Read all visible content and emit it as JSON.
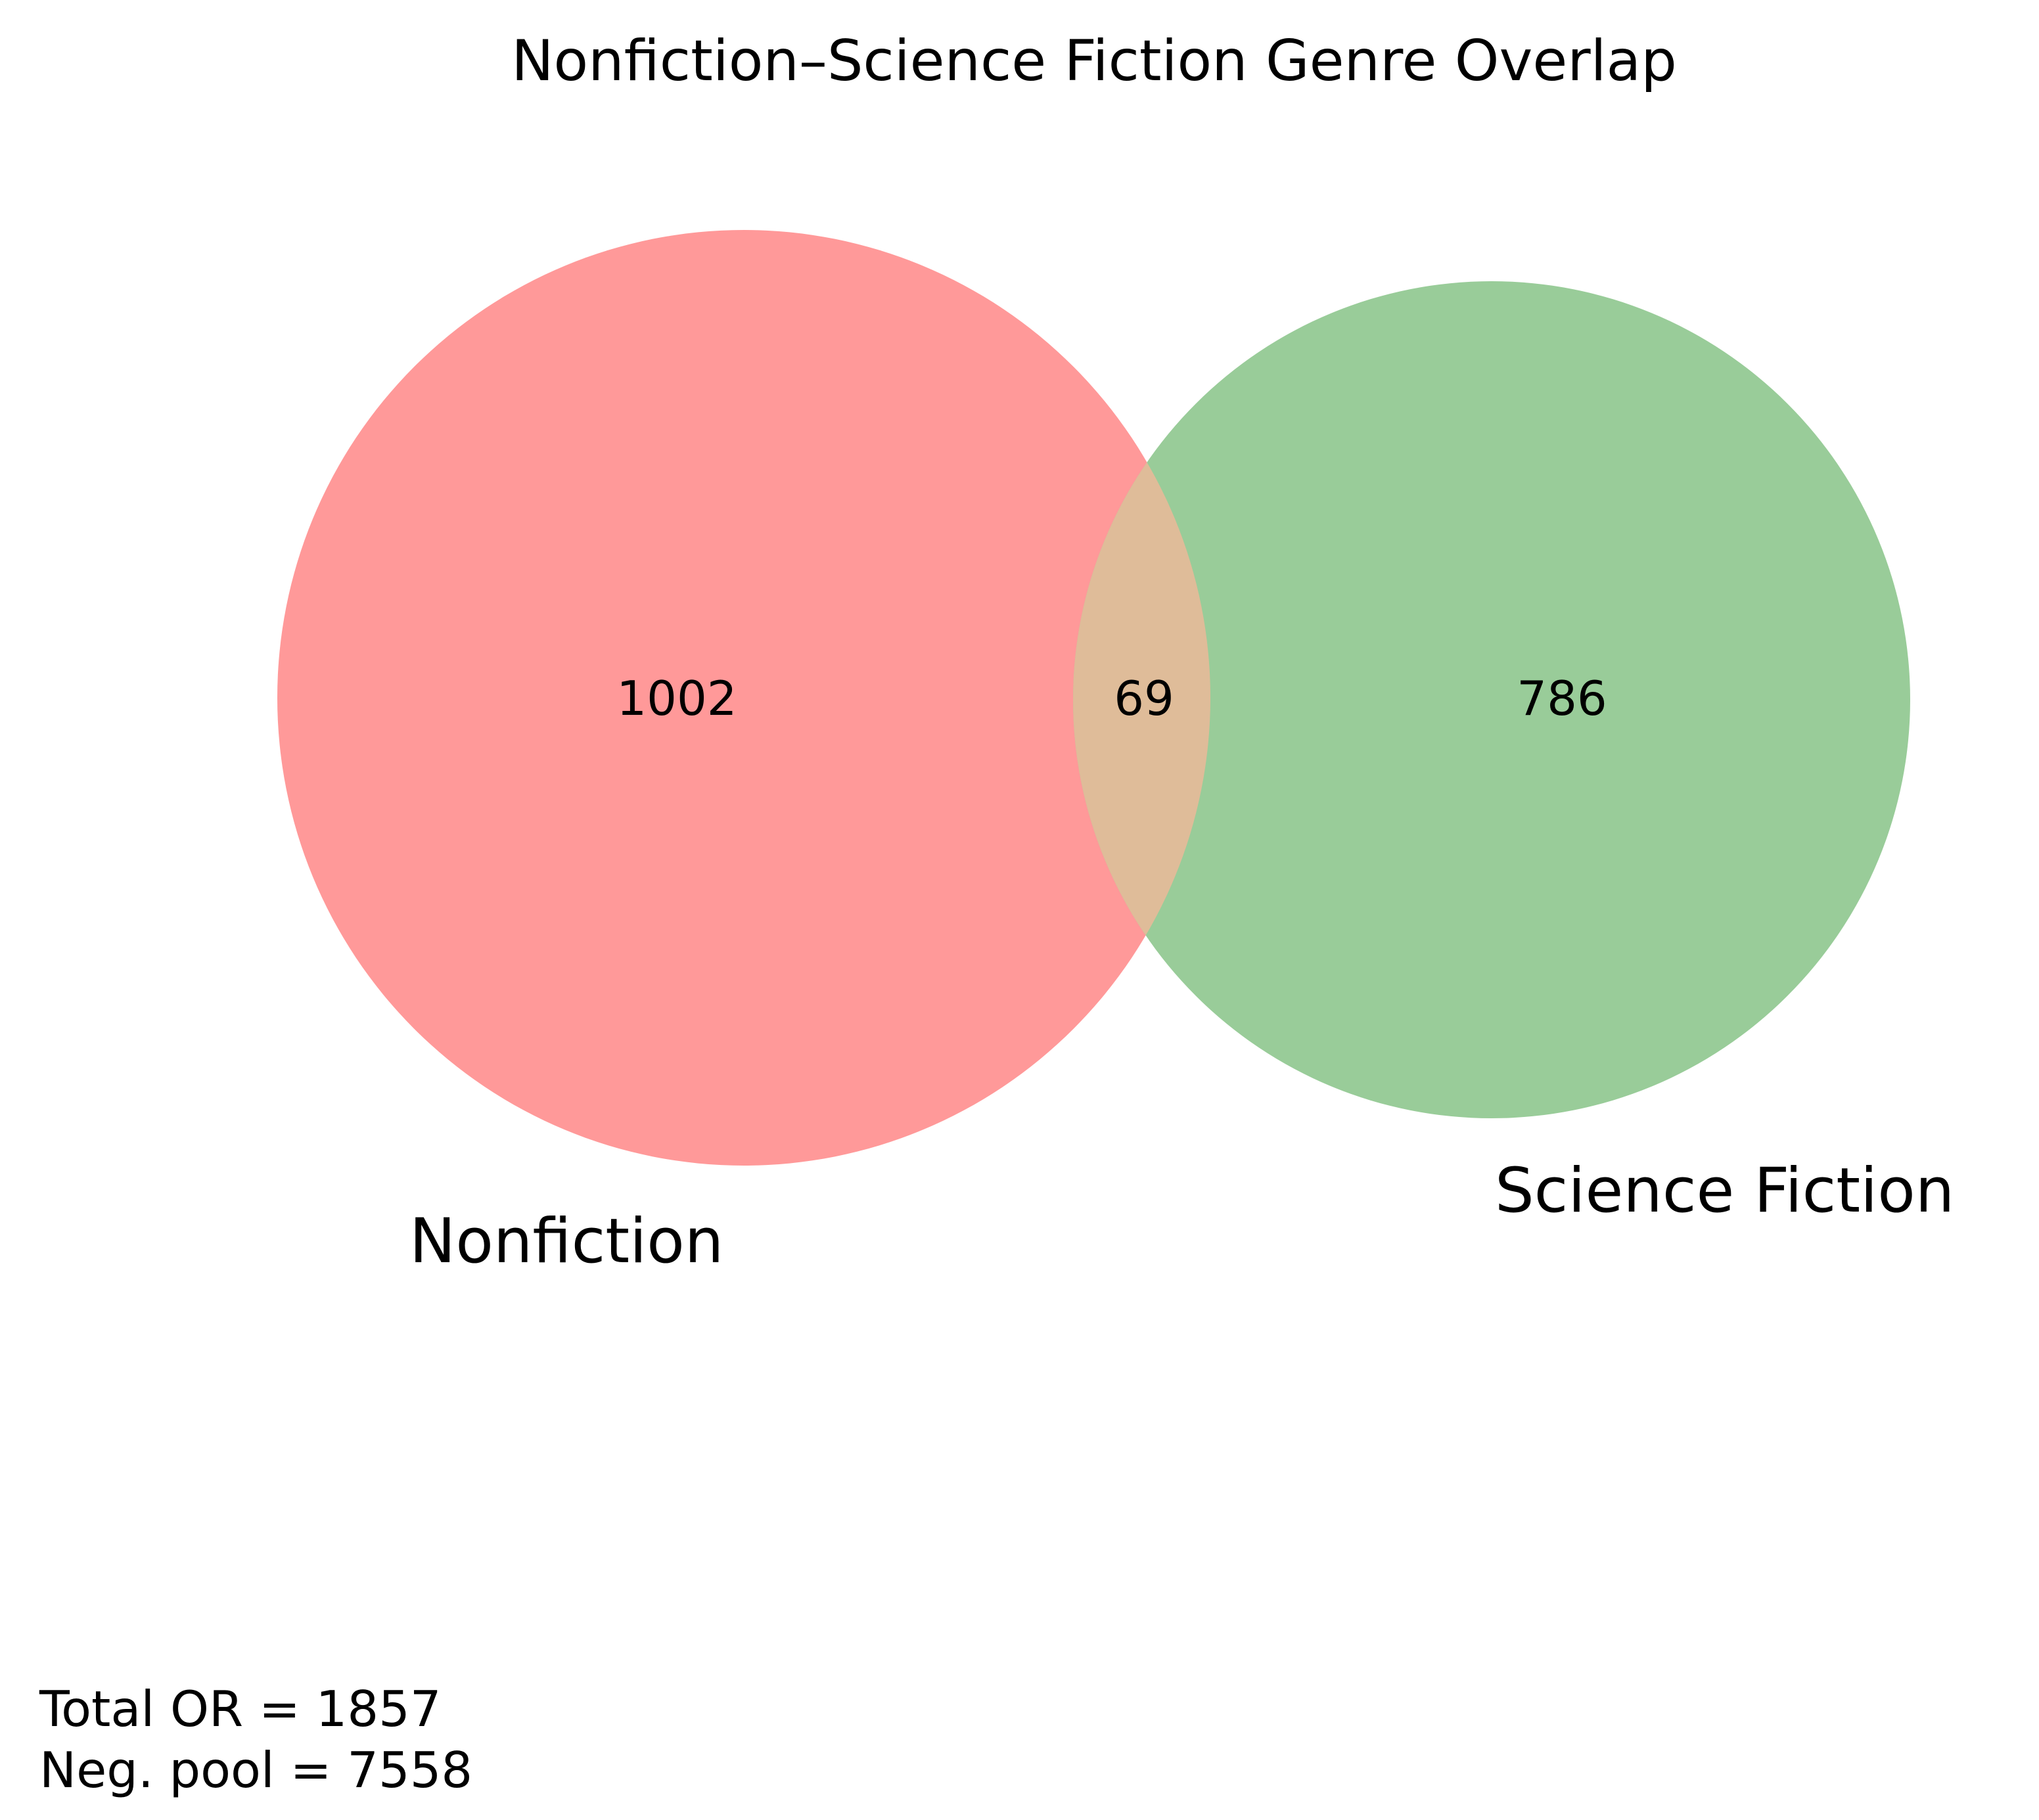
{
  "title": "Nonfiction–Science Fiction Genre Overlap",
  "sets": [
    {
      "name": "Nonfiction",
      "only_count": "1002",
      "color": "#ff9999"
    },
    {
      "name": "Science Fiction",
      "only_count": "786",
      "color": "#99cc99"
    }
  ],
  "intersection": {
    "count": "69",
    "color": "#dfbc99"
  },
  "stats": {
    "total_or": "Total OR = 1857",
    "neg_pool": "Neg. pool = 7558"
  }
}
